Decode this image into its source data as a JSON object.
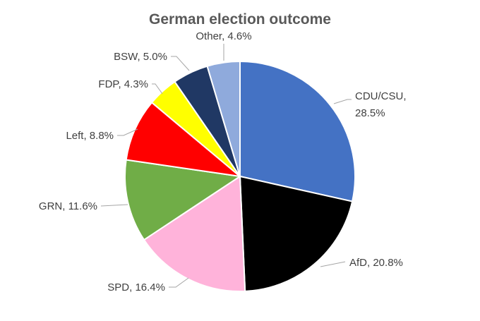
{
  "chart_data": {
    "type": "pie",
    "title": "German election outcome",
    "start_angle_deg": 0,
    "direction": "clockwise",
    "slices": [
      {
        "label": "CDU/CSU",
        "value": 28.5,
        "value_label": "28.5%",
        "color": "#4472C4"
      },
      {
        "label": "AfD",
        "value": 20.8,
        "value_label": "20.8%",
        "color": "#000000"
      },
      {
        "label": "SPD",
        "value": 16.4,
        "value_label": "16.4%",
        "color": "#FFB3DA"
      },
      {
        "label": "GRN",
        "value": 11.6,
        "value_label": "11.6%",
        "color": "#70AD47"
      },
      {
        "label": "Left",
        "value": 8.8,
        "value_label": "8.8%",
        "color": "#FF0000"
      },
      {
        "label": "FDP",
        "value": 4.3,
        "value_label": "4.3%",
        "color": "#FFFF00"
      },
      {
        "label": "BSW",
        "value": 5.0,
        "value_label": "5.0%",
        "color": "#203864"
      },
      {
        "label": "Other",
        "value": 4.6,
        "value_label": "4.6%",
        "color": "#8FAADC"
      }
    ],
    "data_labels": [
      "CDU/CSU,",
      "28.5%",
      "AfD, 20.8%",
      "SPD, 16.4%",
      "GRN, 11.6%",
      "Left, 8.8%",
      "FDP, 4.3%",
      "BSW, 5.0%",
      "Other, 4.6%"
    ]
  }
}
